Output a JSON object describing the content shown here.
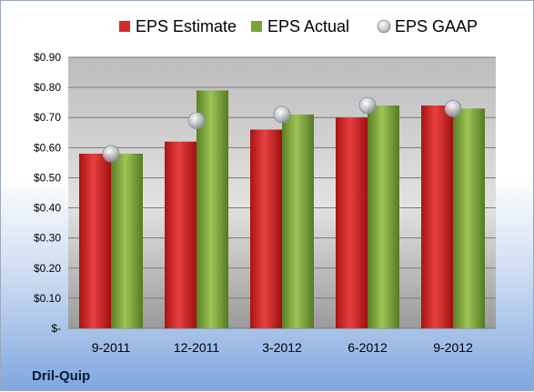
{
  "chart_data": {
    "type": "bar",
    "categories": [
      "9-2011",
      "12-2011",
      "3-2012",
      "6-2012",
      "9-2012"
    ],
    "series": [
      {
        "name": "EPS Estimate",
        "values": [
          0.58,
          0.62,
          0.66,
          0.7,
          0.74
        ],
        "color": "#d42a2a",
        "kind": "bar"
      },
      {
        "name": "EPS Actual",
        "values": [
          0.58,
          0.79,
          0.71,
          0.74,
          0.73
        ],
        "color": "#7aa33a",
        "kind": "bar"
      },
      {
        "name": "EPS GAAP",
        "values": [
          0.58,
          0.69,
          0.71,
          0.74,
          0.73
        ],
        "color": "#b8bcc4",
        "kind": "scatter"
      }
    ],
    "yticks": [
      "$-",
      "$0.10",
      "$0.20",
      "$0.30",
      "$0.40",
      "$0.50",
      "$0.60",
      "$0.70",
      "$0.80",
      "$0.90"
    ],
    "ylim": [
      0,
      0.9
    ],
    "grid": true,
    "legend": "top",
    "company": "Dril-Quip"
  }
}
